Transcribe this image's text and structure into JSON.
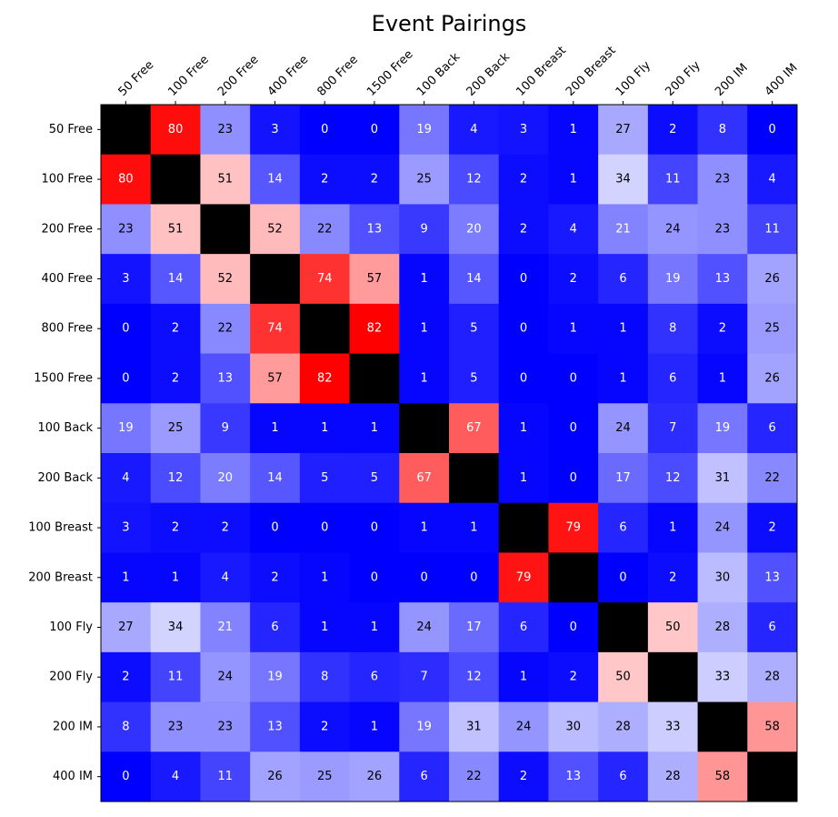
{
  "chart_data": {
    "type": "heatmap",
    "title": "Event Pairings",
    "categories": [
      "50 Free",
      "100 Free",
      "200 Free",
      "400 Free",
      "800 Free",
      "1500 Free",
      "100 Back",
      "200 Back",
      "100 Breast",
      "200 Breast",
      "100 Fly",
      "200 Fly",
      "200 IM",
      "400 IM"
    ],
    "values": [
      [
        null,
        80,
        23,
        3,
        0,
        0,
        19,
        4,
        3,
        1,
        27,
        2,
        8,
        0
      ],
      [
        80,
        null,
        51,
        14,
        2,
        2,
        25,
        12,
        2,
        1,
        34,
        11,
        23,
        4
      ],
      [
        23,
        51,
        null,
        52,
        22,
        13,
        9,
        20,
        2,
        4,
        21,
        24,
        23,
        11
      ],
      [
        3,
        14,
        52,
        null,
        74,
        57,
        1,
        14,
        0,
        2,
        6,
        19,
        13,
        26
      ],
      [
        0,
        2,
        22,
        74,
        null,
        82,
        1,
        5,
        0,
        1,
        1,
        8,
        2,
        25
      ],
      [
        0,
        2,
        13,
        57,
        82,
        null,
        1,
        5,
        0,
        0,
        1,
        6,
        1,
        26
      ],
      [
        19,
        25,
        9,
        1,
        1,
        1,
        null,
        67,
        1,
        0,
        24,
        7,
        19,
        6
      ],
      [
        4,
        12,
        20,
        14,
        5,
        5,
        67,
        null,
        1,
        0,
        17,
        12,
        31,
        22
      ],
      [
        3,
        2,
        2,
        0,
        0,
        0,
        1,
        1,
        null,
        79,
        6,
        1,
        24,
        2
      ],
      [
        1,
        1,
        4,
        2,
        1,
        0,
        0,
        0,
        79,
        null,
        0,
        2,
        30,
        13
      ],
      [
        27,
        34,
        21,
        6,
        1,
        1,
        24,
        17,
        6,
        0,
        null,
        50,
        28,
        6
      ],
      [
        2,
        11,
        24,
        19,
        8,
        6,
        7,
        12,
        1,
        2,
        50,
        null,
        33,
        28
      ],
      [
        8,
        23,
        23,
        13,
        2,
        1,
        19,
        31,
        24,
        30,
        28,
        33,
        null,
        58
      ],
      [
        0,
        4,
        11,
        26,
        25,
        26,
        6,
        22,
        2,
        13,
        6,
        28,
        58,
        null
      ]
    ],
    "colormap": "blue-white-red (bwr)",
    "value_range": [
      0,
      82
    ],
    "diagonal_color": "#000000",
    "x_tick_position": "top",
    "grid": false,
    "legend": "none"
  }
}
